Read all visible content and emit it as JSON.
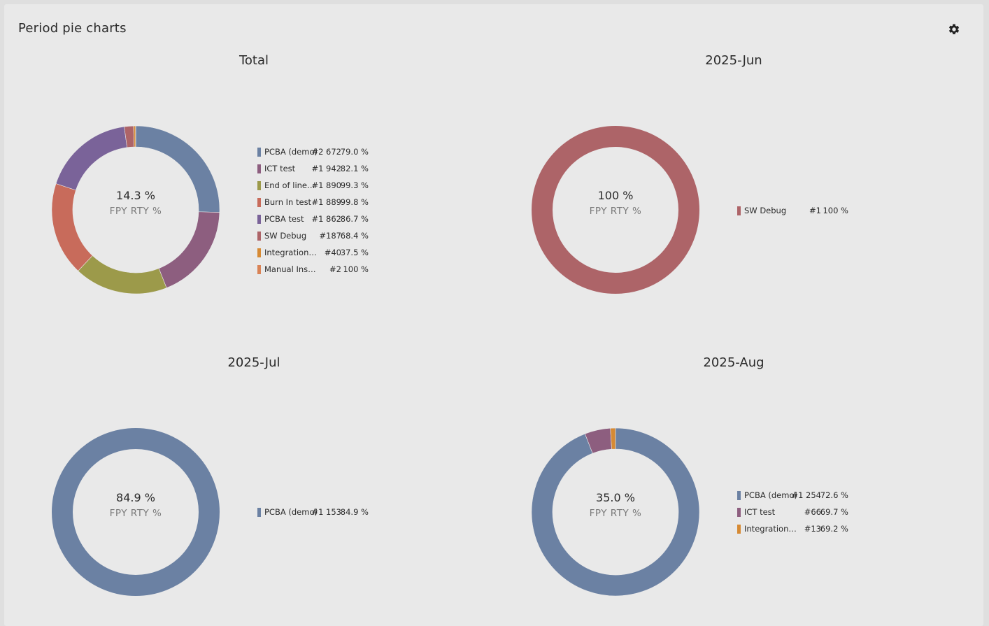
{
  "panel": {
    "title": "Period pie charts",
    "settings_icon": "gear-icon"
  },
  "chart_data": [
    {
      "type": "pie",
      "title": "Total",
      "center_value": "14.3 %",
      "center_label": "FPY RTY %",
      "slices": [
        {
          "name": "PCBA (demo)",
          "count": "#2 672",
          "pct": "79.0 %",
          "value": 2672,
          "color": "#6b81a3"
        },
        {
          "name": "ICT test",
          "count": "#1 942",
          "pct": "82.1 %",
          "value": 1942,
          "color": "#8d5e7f"
        },
        {
          "name": "End of line test",
          "count": "#1 890",
          "pct": "99.3 %",
          "value": 1890,
          "color": "#9c9a4a"
        },
        {
          "name": "Burn In test",
          "count": "#1 889",
          "pct": "99.8 %",
          "value": 1889,
          "color": "#c86b5b"
        },
        {
          "name": "PCBA test",
          "count": "#1 862",
          "pct": "86.7 %",
          "value": 1862,
          "color": "#7a6399"
        },
        {
          "name": "SW Debug",
          "count": "#187",
          "pct": "68.4 %",
          "value": 187,
          "color": "#ad6468"
        },
        {
          "name": "Integrationt...",
          "count": "#40",
          "pct": "37.5 %",
          "value": 40,
          "color": "#d68a34"
        },
        {
          "name": "Manual Inspe...",
          "count": "#2",
          "pct": "100 %",
          "value": 2,
          "color": "#d98356"
        }
      ]
    },
    {
      "type": "pie",
      "title": "2025-Jun",
      "center_value": "100 %",
      "center_label": "FPY RTY %",
      "slices": [
        {
          "name": "SW Debug",
          "count": "#1",
          "pct": "100 %",
          "value": 1,
          "color": "#ad6468"
        }
      ]
    },
    {
      "type": "pie",
      "title": "2025-Jul",
      "center_value": "84.9 %",
      "center_label": "FPY RTY %",
      "slices": [
        {
          "name": "PCBA (demo)",
          "count": "#1 153",
          "pct": "84.9 %",
          "value": 1153,
          "color": "#6b81a3"
        }
      ]
    },
    {
      "type": "pie",
      "title": "2025-Aug",
      "center_value": "35.0 %",
      "center_label": "FPY RTY %",
      "slices": [
        {
          "name": "PCBA (demo)",
          "count": "#1 254",
          "pct": "72.6 %",
          "value": 1254,
          "color": "#6b81a3"
        },
        {
          "name": "ICT test",
          "count": "#66",
          "pct": "69.7 %",
          "value": 66,
          "color": "#8d5e7f"
        },
        {
          "name": "Integrationt...",
          "count": "#13",
          "pct": "69.2 %",
          "value": 13,
          "color": "#d68a34"
        }
      ]
    }
  ]
}
